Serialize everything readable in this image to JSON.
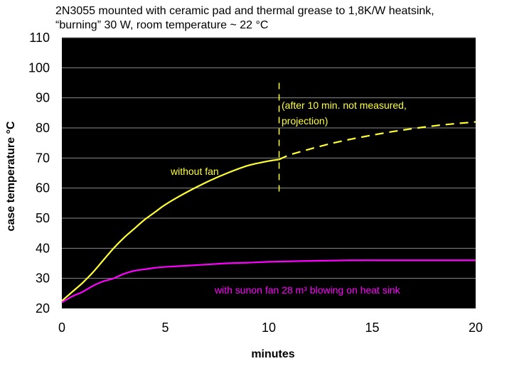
{
  "chart_data": {
    "type": "line",
    "title_lines": [
      "2N3055 mounted with ceramic pad and thermal grease to 1,8K/W heatsink,",
      "“burning” 30 W,  room temperature ~ 22 °C"
    ],
    "xlabel": "minutes",
    "ylabel": "case temperature °C",
    "xlim": [
      0,
      20
    ],
    "ylim": [
      20,
      110
    ],
    "x_ticks": [
      0,
      5,
      10,
      15,
      20
    ],
    "y_ticks": [
      20,
      30,
      40,
      50,
      60,
      70,
      80,
      90,
      100,
      110
    ],
    "grid": true,
    "background": "#000000",
    "series": [
      {
        "label": "without fan",
        "color": "#ffff33",
        "style": "solid",
        "x": [
          0,
          0.5,
          1,
          1.5,
          2,
          2.5,
          3,
          3.5,
          4,
          4.5,
          5,
          6,
          7,
          8,
          9,
          10,
          10.5
        ],
        "y": [
          22.5,
          25.5,
          28.5,
          32,
          36,
          40,
          43.5,
          46.5,
          49.5,
          52,
          54.5,
          58.5,
          62,
          65,
          67.5,
          69,
          69.5
        ]
      },
      {
        "label": "projection",
        "color": "#ffff33",
        "style": "dashed",
        "x": [
          10.5,
          11,
          12,
          13,
          14,
          15,
          16,
          17,
          18,
          19,
          20
        ],
        "y": [
          69.5,
          71,
          73,
          74.8,
          76.3,
          77.6,
          78.8,
          79.8,
          80.7,
          81.4,
          82
        ]
      },
      {
        "label": "with sunon fan 28 m³ blowing on heat sink",
        "color": "#ff00ff",
        "style": "solid",
        "x": [
          0,
          0.5,
          1,
          1.5,
          2,
          2.5,
          3,
          3.5,
          4,
          4.5,
          5,
          6,
          7,
          8,
          9,
          10,
          12,
          14,
          16,
          18,
          20
        ],
        "y": [
          22,
          24,
          25.5,
          27.5,
          29,
          30,
          31.5,
          32.5,
          33,
          33.5,
          33.8,
          34.2,
          34.6,
          35,
          35.2,
          35.5,
          35.8,
          36,
          36,
          36,
          36
        ]
      }
    ],
    "annotations": [
      {
        "text": "without fan",
        "color": "#ffff33"
      },
      {
        "text": "(after 10 min. not measured,",
        "color": "#ffff33"
      },
      {
        "text": "projection)",
        "color": "#ffff33"
      },
      {
        "text": "with sunon fan 28 m³ blowing on heat sink",
        "color": "#ff00ff"
      }
    ],
    "marker_line": {
      "x": 10.5,
      "y_range": [
        58,
        95
      ],
      "color": "#ffff33",
      "style": "dashed"
    }
  }
}
